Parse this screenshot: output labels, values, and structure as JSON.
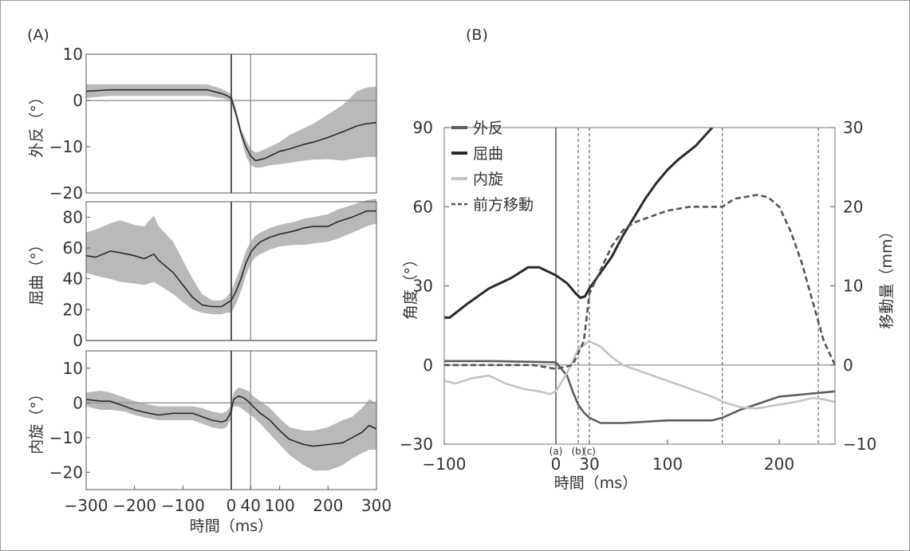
{
  "panel_labels": {
    "A": "(A)",
    "B": "(B)"
  },
  "chart_data": [
    {
      "id": "A",
      "type": "line",
      "xlabel": "時間（ms）",
      "xlim": [
        -300,
        300
      ],
      "xticks": [
        -300,
        -200,
        -100,
        0,
        40,
        100,
        200,
        300
      ],
      "xtick_labels": [
        "−300",
        "−200",
        "−100",
        "0",
        "40",
        "100",
        "200",
        "300"
      ],
      "vlines": [
        0,
        40
      ],
      "subplots": [
        {
          "ylabel": "外反（°）",
          "ylim": [
            -20,
            10
          ],
          "yticks": [
            -20,
            -10,
            0,
            10
          ],
          "ytick_labels": [
            "−20",
            "−10",
            "0",
            "10"
          ],
          "series": [
            {
              "x": [
                -300,
                -250,
                -200,
                -150,
                -100,
                -50,
                -20,
                -8,
                0,
                10,
                20,
                30,
                40,
                50,
                60,
                70,
                80,
                100,
                120,
                150,
                170,
                200,
                230,
                260,
                280,
                300
              ],
              "mean": [
                2,
                2.3,
                2.3,
                2.3,
                2.3,
                2.3,
                1.5,
                1,
                0.5,
                -3,
                -7,
                -10,
                -12,
                -13,
                -12.8,
                -12.5,
                -12,
                -11,
                -10.5,
                -9.5,
                -9,
                -8,
                -6.8,
                -5.5,
                -5,
                -4.8
              ],
              "lower": [
                0.5,
                1,
                1,
                1,
                1,
                1,
                0.5,
                0.2,
                -0.5,
                -4,
                -8,
                -12,
                -14,
                -14.5,
                -14.5,
                -14.3,
                -14,
                -13.8,
                -13.5,
                -13,
                -12.8,
                -12.7,
                -13,
                -12.5,
                -12.2,
                -12.2
              ],
              "upper": [
                3.5,
                3.5,
                3.5,
                3.5,
                3.5,
                3.5,
                2.5,
                1.8,
                1.5,
                -2,
                -6,
                -8.5,
                -10.5,
                -11.2,
                -11,
                -10.5,
                -10,
                -9,
                -7.5,
                -6,
                -5,
                -3,
                -1,
                2,
                2.8,
                3
              ]
            }
          ]
        },
        {
          "ylabel": "屈曲（°）",
          "ylim": [
            0,
            90
          ],
          "yticks": [
            0,
            20,
            40,
            60,
            80
          ],
          "ytick_labels": [
            "0",
            "20",
            "40",
            "60",
            "80"
          ],
          "series": [
            {
              "x": [
                -300,
                -280,
                -250,
                -230,
                -200,
                -180,
                -160,
                -150,
                -120,
                -100,
                -80,
                -60,
                -40,
                -20,
                -10,
                0,
                10,
                20,
                30,
                40,
                50,
                60,
                80,
                100,
                130,
                150,
                170,
                200,
                220,
                250,
                280,
                300
              ],
              "mean": [
                55,
                54,
                58,
                57,
                55,
                53,
                56,
                52,
                44,
                36,
                28,
                23,
                22,
                22,
                24,
                26,
                32,
                40,
                50,
                57,
                61,
                64,
                67,
                69,
                71,
                73,
                74,
                74,
                77,
                80,
                84,
                84
              ],
              "lower": [
                44,
                42,
                40,
                38,
                37,
                36,
                38,
                36,
                30,
                25,
                20,
                18,
                17,
                17,
                18,
                18,
                24,
                32,
                42,
                50,
                54,
                56,
                59,
                61,
                62,
                62,
                63,
                64,
                66,
                70,
                74,
                76
              ],
              "upper": [
                70,
                72,
                76,
                78,
                75,
                74,
                81,
                74,
                64,
                52,
                40,
                30,
                26,
                26,
                28,
                32,
                40,
                48,
                58,
                64,
                68,
                70,
                73,
                75,
                77,
                79,
                80,
                82,
                85,
                88,
                91,
                92
              ]
            }
          ]
        },
        {
          "ylabel": "内旋（°）",
          "ylim": [
            -25,
            15
          ],
          "yticks": [
            -20,
            -10,
            0,
            10
          ],
          "ytick_labels": [
            "−20",
            "−10",
            "0",
            "10"
          ],
          "series": [
            {
              "x": [
                -300,
                -270,
                -250,
                -220,
                -200,
                -170,
                -150,
                -120,
                -100,
                -80,
                -60,
                -40,
                -20,
                -10,
                -2,
                5,
                15,
                25,
                35,
                45,
                60,
                80,
                100,
                120,
                150,
                170,
                200,
                230,
                250,
                270,
                285,
                300
              ],
              "mean": [
                1,
                0.5,
                0.5,
                -1,
                -2,
                -3,
                -3.5,
                -3,
                -3,
                -3,
                -4,
                -5,
                -5.5,
                -5,
                -3,
                1,
                2,
                1.5,
                0.5,
                -1,
                -3,
                -5,
                -8,
                -10.5,
                -12,
                -12.5,
                -12,
                -11.5,
                -10,
                -8.5,
                -6.5,
                -7.5
              ],
              "lower": [
                -1,
                -2,
                -2,
                -2.5,
                -3.5,
                -4.5,
                -5,
                -5,
                -5,
                -5,
                -6,
                -7,
                -7.5,
                -7,
                -5,
                -1,
                -1,
                -2,
                -3,
                -4,
                -6,
                -9,
                -12,
                -15,
                -18,
                -19.5,
                -19.5,
                -18,
                -16,
                -14.5,
                -13.5,
                -13.5
              ],
              "upper": [
                3,
                3.5,
                3,
                1.5,
                0.5,
                -0.5,
                -1,
                -1,
                -1,
                -1,
                -1.5,
                -2.5,
                -3,
                -2.5,
                -1,
                3,
                4.5,
                4,
                3.5,
                2,
                0.5,
                -1.5,
                -4.5,
                -7,
                -8,
                -8,
                -7,
                -5,
                -4,
                -1.5,
                1,
                0
              ]
            }
          ]
        }
      ]
    },
    {
      "id": "B",
      "type": "line",
      "xlabel": "時間（ms）",
      "ylabel": "角度（°）",
      "y2label": "移動量（mm）",
      "xlim": [
        -100,
        250
      ],
      "ylim": [
        -30,
        90
      ],
      "y2lim": [
        -10,
        30
      ],
      "xticks": [
        -100,
        0,
        30,
        100,
        200
      ],
      "xtick_labels": [
        "−100",
        "0",
        "30",
        "100",
        "200"
      ],
      "yticks": [
        -30,
        0,
        30,
        60,
        90
      ],
      "ytick_labels": [
        "−30",
        "0",
        "30",
        "60",
        "90"
      ],
      "y2ticks": [
        -10,
        0,
        10,
        20,
        30
      ],
      "y2tick_labels": [
        "−10",
        "0",
        "10",
        "20",
        "30"
      ],
      "vlines_solid": [
        0
      ],
      "vlines_dashed": [
        20,
        30,
        149,
        235
      ],
      "event_labels": [
        "(a)",
        "(b)",
        "(c)"
      ],
      "series": [
        {
          "name": "外反",
          "axis": "y",
          "style": "solid",
          "color": "#5d5d5d",
          "x": [
            -100,
            -60,
            -20,
            0,
            10,
            15,
            20,
            25,
            30,
            40,
            60,
            80,
            100,
            140,
            149,
            165,
            200,
            250
          ],
          "y": [
            1.5,
            1.5,
            1.2,
            1,
            -4,
            -10,
            -15,
            -18,
            -20,
            -22,
            -22,
            -21.5,
            -21,
            -21,
            -20,
            -17,
            -12,
            -10
          ]
        },
        {
          "name": "屈曲",
          "axis": "y",
          "style": "solid",
          "color": "#2a2a2a",
          "x": [
            -100,
            -95,
            -80,
            -60,
            -40,
            -25,
            -15,
            0,
            10,
            18,
            22,
            26,
            30,
            40,
            50,
            60,
            70,
            80,
            90,
            100,
            110,
            125,
            140
          ],
          "y": [
            18,
            18,
            23,
            29,
            33,
            37,
            37,
            34,
            31,
            27,
            25.5,
            26,
            29,
            35,
            41,
            49,
            56,
            63,
            69,
            74,
            78,
            83,
            90
          ]
        },
        {
          "name": "内旋",
          "axis": "y",
          "style": "solid",
          "color": "#c4c4c4",
          "x": [
            -100,
            -90,
            -75,
            -60,
            -45,
            -30,
            -15,
            -5,
            0,
            10,
            20,
            30,
            40,
            50,
            60,
            80,
            100,
            120,
            140,
            150,
            165,
            180,
            200,
            215,
            230,
            240,
            250
          ],
          "y": [
            -6,
            -7,
            -5,
            -4,
            -7,
            -9,
            -10,
            -11,
            -10,
            -3,
            6,
            9,
            7,
            3,
            0,
            -3,
            -6,
            -9,
            -12,
            -14,
            -16,
            -16.5,
            -15,
            -14,
            -12.5,
            -13,
            -14
          ]
        },
        {
          "name": "前方移動",
          "axis": "y2",
          "style": "dashed",
          "color": "#555555",
          "x": [
            -100,
            -20,
            0,
            15,
            25,
            30,
            40,
            50,
            60,
            70,
            80,
            100,
            120,
            140,
            149,
            160,
            180,
            190,
            200,
            210,
            220,
            230,
            240,
            250
          ],
          "y": [
            0,
            0,
            -0.5,
            0,
            3,
            9,
            12,
            15,
            17,
            18,
            18.5,
            19.5,
            20,
            20,
            20,
            21,
            21.5,
            21.2,
            20,
            17,
            13,
            8,
            3,
            0
          ]
        }
      ]
    }
  ]
}
